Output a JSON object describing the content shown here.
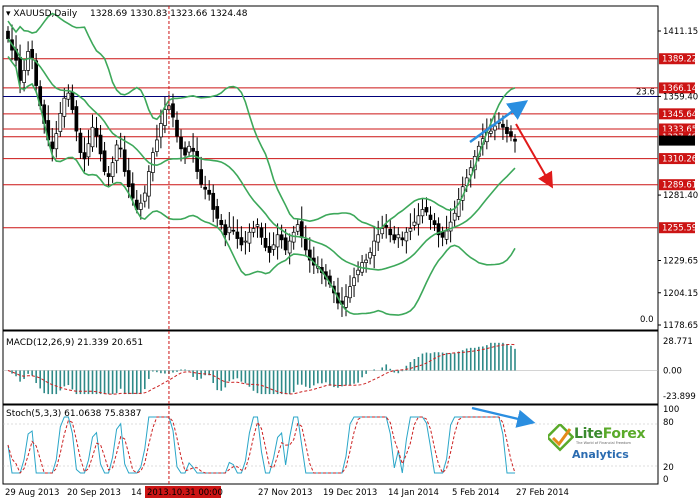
{
  "chart_data": [
    {
      "type": "candlestick",
      "symbol": "XAUUSD",
      "timeframe": "Daily",
      "header_ohlc": [
        "1328.69",
        "1330.83",
        "1323.66",
        "1324.48"
      ],
      "ylim": [
        1178.65,
        1420
      ],
      "y_ticks": [
        1411.15,
        1389.22,
        1366.14,
        1359.4,
        1345.64,
        1333.65,
        1327.49,
        1310.26,
        1289.61,
        1281.4,
        1255.59,
        1229.65,
        1204.15,
        1178.65
      ],
      "resistance_support_levels": [
        1389.22,
        1366.14,
        1345.64,
        1333.65,
        1327.49,
        1310.26,
        1289.61,
        1255.59
      ],
      "highlighted_price_labels": [
        "1389.22",
        "1366.14",
        "1345.64",
        "1333.65",
        "1327.49",
        "1310.26",
        "1289.61",
        "1255.59"
      ],
      "current_price": 1324.48,
      "fibonacci": {
        "level_23_6": {
          "label": "23.6",
          "price": 1359.4
        },
        "level_0": {
          "label": "0.0",
          "price": 1183
        }
      },
      "x_tick_labels": [
        "29 Aug 2013",
        "20 Sep 2013",
        "14 Oct 2013",
        "2013.10.31 00:00",
        "27 Nov 2013",
        "19 Dec 2013",
        "14 Jan 2014",
        "5 Feb 2014",
        "27 Feb 2014"
      ],
      "highlighted_x_label": "2013.10.31 00:00",
      "closes": [
        1405,
        1396,
        1388,
        1372,
        1380,
        1395,
        1390,
        1368,
        1352,
        1338,
        1325,
        1318,
        1330,
        1346,
        1358,
        1362,
        1349,
        1332,
        1315,
        1310,
        1322,
        1335,
        1328,
        1314,
        1300,
        1296,
        1307,
        1321,
        1318,
        1300,
        1288,
        1279,
        1270,
        1275,
        1283,
        1300,
        1315,
        1325,
        1338,
        1349,
        1352,
        1343,
        1328,
        1318,
        1313,
        1320,
        1316,
        1300,
        1290,
        1286,
        1282,
        1270,
        1263,
        1258,
        1250,
        1256,
        1253,
        1247,
        1242,
        1245,
        1252,
        1255,
        1258,
        1248,
        1240,
        1236,
        1242,
        1250,
        1246,
        1238,
        1245,
        1252,
        1258,
        1248,
        1238,
        1230,
        1226,
        1225,
        1220,
        1215,
        1211,
        1204,
        1196,
        1195,
        1201,
        1209,
        1216,
        1222,
        1228,
        1230,
        1236,
        1245,
        1250,
        1255,
        1256,
        1250,
        1246,
        1250,
        1246,
        1252,
        1255,
        1260,
        1265,
        1270,
        1268,
        1262,
        1258,
        1250,
        1248,
        1253,
        1260,
        1267,
        1278,
        1288,
        1295,
        1303,
        1312,
        1320,
        1326,
        1331,
        1332,
        1336,
        1339,
        1335,
        1330,
        1328,
        1324
      ]
    },
    {
      "type": "histogram",
      "indicator": "MACD",
      "label": "MACD(12,26,9)",
      "values_text": [
        "21.339",
        "20.651"
      ],
      "ylim": [
        -23.899,
        28.771
      ],
      "y_ticks": [
        "28.771",
        "0.00",
        "-23.899"
      ]
    },
    {
      "type": "line",
      "indicator": "Stochastic",
      "label": "Stoch(5,3,3)",
      "values_text": [
        "61.0638",
        "75.8387"
      ],
      "ylim": [
        0,
        100
      ],
      "y_ticks": [
        "100",
        "80",
        "20",
        "0"
      ]
    }
  ],
  "branding": {
    "logo_name_a": "Lite",
    "logo_name_b": "Forex",
    "logo_tagline": "The World of Financial Freedom",
    "logo_sub": "Analytics"
  },
  "colors": {
    "bull": "#ffffff",
    "bear": "#000000",
    "bands": "#3da85a",
    "levels": "#cc1414",
    "fib": "#00007a",
    "arrow_up": "#2a8ee0",
    "arrow_down": "#e01a1a",
    "macd_hist": "#2e8a88",
    "stoch_main": "#2aa6c8",
    "stoch_signal": "#cc2222",
    "highlight_label_bg": "#cc1414"
  }
}
